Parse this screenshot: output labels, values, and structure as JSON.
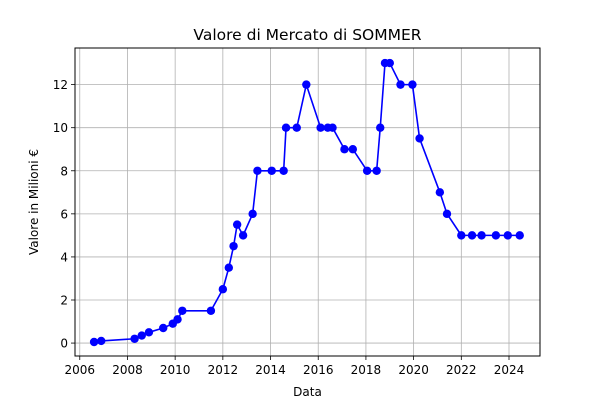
{
  "chart_data": {
    "type": "line",
    "title": "Valore di Mercato di SOMMER",
    "xlabel": "Data",
    "ylabel": "Valore in Milioni €",
    "xlim": [
      2005.8,
      2025.3
    ],
    "ylim": [
      -0.6,
      13.7
    ],
    "xticks": [
      2006,
      2008,
      2010,
      2012,
      2014,
      2016,
      2018,
      2020,
      2022,
      2024
    ],
    "yticks": [
      0,
      2,
      4,
      6,
      8,
      10,
      12
    ],
    "grid": true,
    "legend": "none",
    "series_color": "#0000ff",
    "series": [
      {
        "x": [
          2006.6,
          2006.9,
          2008.3,
          2008.6,
          2008.9,
          2009.5,
          2009.9,
          2010.1,
          2010.3,
          2011.5,
          2012.0,
          2012.25,
          2012.45,
          2012.6,
          2012.85,
          2013.25,
          2013.45,
          2014.05,
          2014.55,
          2014.65,
          2015.1,
          2015.5,
          2016.1,
          2016.4,
          2016.6,
          2017.1,
          2017.45,
          2018.05,
          2018.45,
          2018.6,
          2018.8,
          2019.0,
          2019.45,
          2019.95,
          2020.25,
          2021.1,
          2021.4,
          2022.0,
          2022.45,
          2022.85,
          2023.45,
          2023.95,
          2024.45
        ],
        "values": [
          0.05,
          0.1,
          0.2,
          0.35,
          0.5,
          0.7,
          0.9,
          1.1,
          1.5,
          1.5,
          2.5,
          3.5,
          4.5,
          5.5,
          5.0,
          6.0,
          8.0,
          8.0,
          8.0,
          10.0,
          10.0,
          12.0,
          10.0,
          10.0,
          10.0,
          9.0,
          9.0,
          8.0,
          8.0,
          10.0,
          13.0,
          13.0,
          12.0,
          12.0,
          9.5,
          7.0,
          6.0,
          5.0,
          5.0,
          5.0,
          5.0,
          5.0,
          5.0
        ]
      }
    ]
  }
}
